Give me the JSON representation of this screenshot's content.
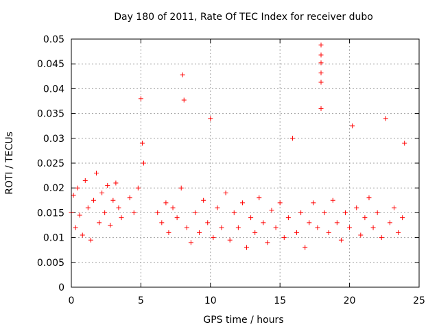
{
  "chart_data": {
    "type": "scatter",
    "title": "Day 180 of 2011, Rate Of TEC Index for receiver dubo",
    "xlabel": "GPS time / hours",
    "ylabel": "ROTI / TECUs",
    "xlim": [
      0,
      25
    ],
    "ylim": [
      0,
      0.05
    ],
    "xticks": [
      "0",
      "5",
      "10",
      "15",
      "20",
      "25"
    ],
    "yticks": [
      "0",
      "0.005",
      "0.01",
      "0.015",
      "0.02",
      "0.025",
      "0.03",
      "0.035",
      "0.04",
      "0.045",
      "0.05"
    ],
    "grid": true,
    "marker": "+",
    "color": "#ff0000",
    "series": [
      {
        "points": [
          [
            0.0,
            0.015
          ],
          [
            0.15,
            0.0185
          ],
          [
            0.3,
            0.012
          ],
          [
            0.45,
            0.02
          ],
          [
            0.6,
            0.0145
          ],
          [
            0.8,
            0.0105
          ],
          [
            1.0,
            0.0215
          ],
          [
            1.2,
            0.016
          ],
          [
            1.4,
            0.0095
          ],
          [
            1.6,
            0.0175
          ],
          [
            1.8,
            0.023
          ],
          [
            2.0,
            0.013
          ],
          [
            2.2,
            0.019
          ],
          [
            2.4,
            0.015
          ],
          [
            2.6,
            0.0205
          ],
          [
            2.8,
            0.0125
          ],
          [
            3.0,
            0.0175
          ],
          [
            3.2,
            0.021
          ],
          [
            3.4,
            0.016
          ],
          [
            3.6,
            0.014
          ],
          [
            4.2,
            0.018
          ],
          [
            4.5,
            0.015
          ],
          [
            4.8,
            0.02
          ],
          [
            5.0,
            0.038
          ],
          [
            5.1,
            0.029
          ],
          [
            5.2,
            0.025
          ],
          [
            6.2,
            0.015
          ],
          [
            6.5,
            0.013
          ],
          [
            6.8,
            0.017
          ],
          [
            7.0,
            0.011
          ],
          [
            7.3,
            0.016
          ],
          [
            7.6,
            0.014
          ],
          [
            7.9,
            0.02
          ],
          [
            8.0,
            0.0428
          ],
          [
            8.1,
            0.0377
          ],
          [
            8.3,
            0.012
          ],
          [
            8.6,
            0.009
          ],
          [
            8.9,
            0.015
          ],
          [
            9.2,
            0.011
          ],
          [
            9.5,
            0.0175
          ],
          [
            9.8,
            0.013
          ],
          [
            10.0,
            0.034
          ],
          [
            10.2,
            0.01
          ],
          [
            10.5,
            0.016
          ],
          [
            10.8,
            0.012
          ],
          [
            11.1,
            0.019
          ],
          [
            11.4,
            0.0095
          ],
          [
            11.7,
            0.015
          ],
          [
            12.0,
            0.012
          ],
          [
            12.3,
            0.017
          ],
          [
            12.6,
            0.008
          ],
          [
            12.9,
            0.014
          ],
          [
            13.2,
            0.011
          ],
          [
            13.5,
            0.018
          ],
          [
            13.8,
            0.013
          ],
          [
            14.1,
            0.009
          ],
          [
            14.4,
            0.0155
          ],
          [
            14.7,
            0.012
          ],
          [
            15.0,
            0.017
          ],
          [
            15.3,
            0.01
          ],
          [
            15.6,
            0.014
          ],
          [
            15.9,
            0.03
          ],
          [
            16.2,
            0.011
          ],
          [
            16.5,
            0.015
          ],
          [
            16.8,
            0.008
          ],
          [
            17.1,
            0.013
          ],
          [
            17.4,
            0.017
          ],
          [
            17.7,
            0.012
          ],
          [
            17.95,
            0.0488
          ],
          [
            17.95,
            0.0468
          ],
          [
            17.95,
            0.0452
          ],
          [
            17.95,
            0.0432
          ],
          [
            17.95,
            0.0413
          ],
          [
            17.95,
            0.036
          ],
          [
            18.2,
            0.015
          ],
          [
            18.5,
            0.011
          ],
          [
            18.8,
            0.0175
          ],
          [
            19.1,
            0.013
          ],
          [
            19.4,
            0.0095
          ],
          [
            19.7,
            0.015
          ],
          [
            20.0,
            0.012
          ],
          [
            20.2,
            0.0325
          ],
          [
            20.5,
            0.016
          ],
          [
            20.8,
            0.0105
          ],
          [
            21.1,
            0.014
          ],
          [
            21.4,
            0.018
          ],
          [
            21.7,
            0.012
          ],
          [
            22.0,
            0.015
          ],
          [
            22.3,
            0.01
          ],
          [
            22.6,
            0.034
          ],
          [
            22.9,
            0.013
          ],
          [
            23.2,
            0.016
          ],
          [
            23.5,
            0.011
          ],
          [
            23.8,
            0.014
          ],
          [
            23.95,
            0.029
          ]
        ]
      }
    ]
  }
}
